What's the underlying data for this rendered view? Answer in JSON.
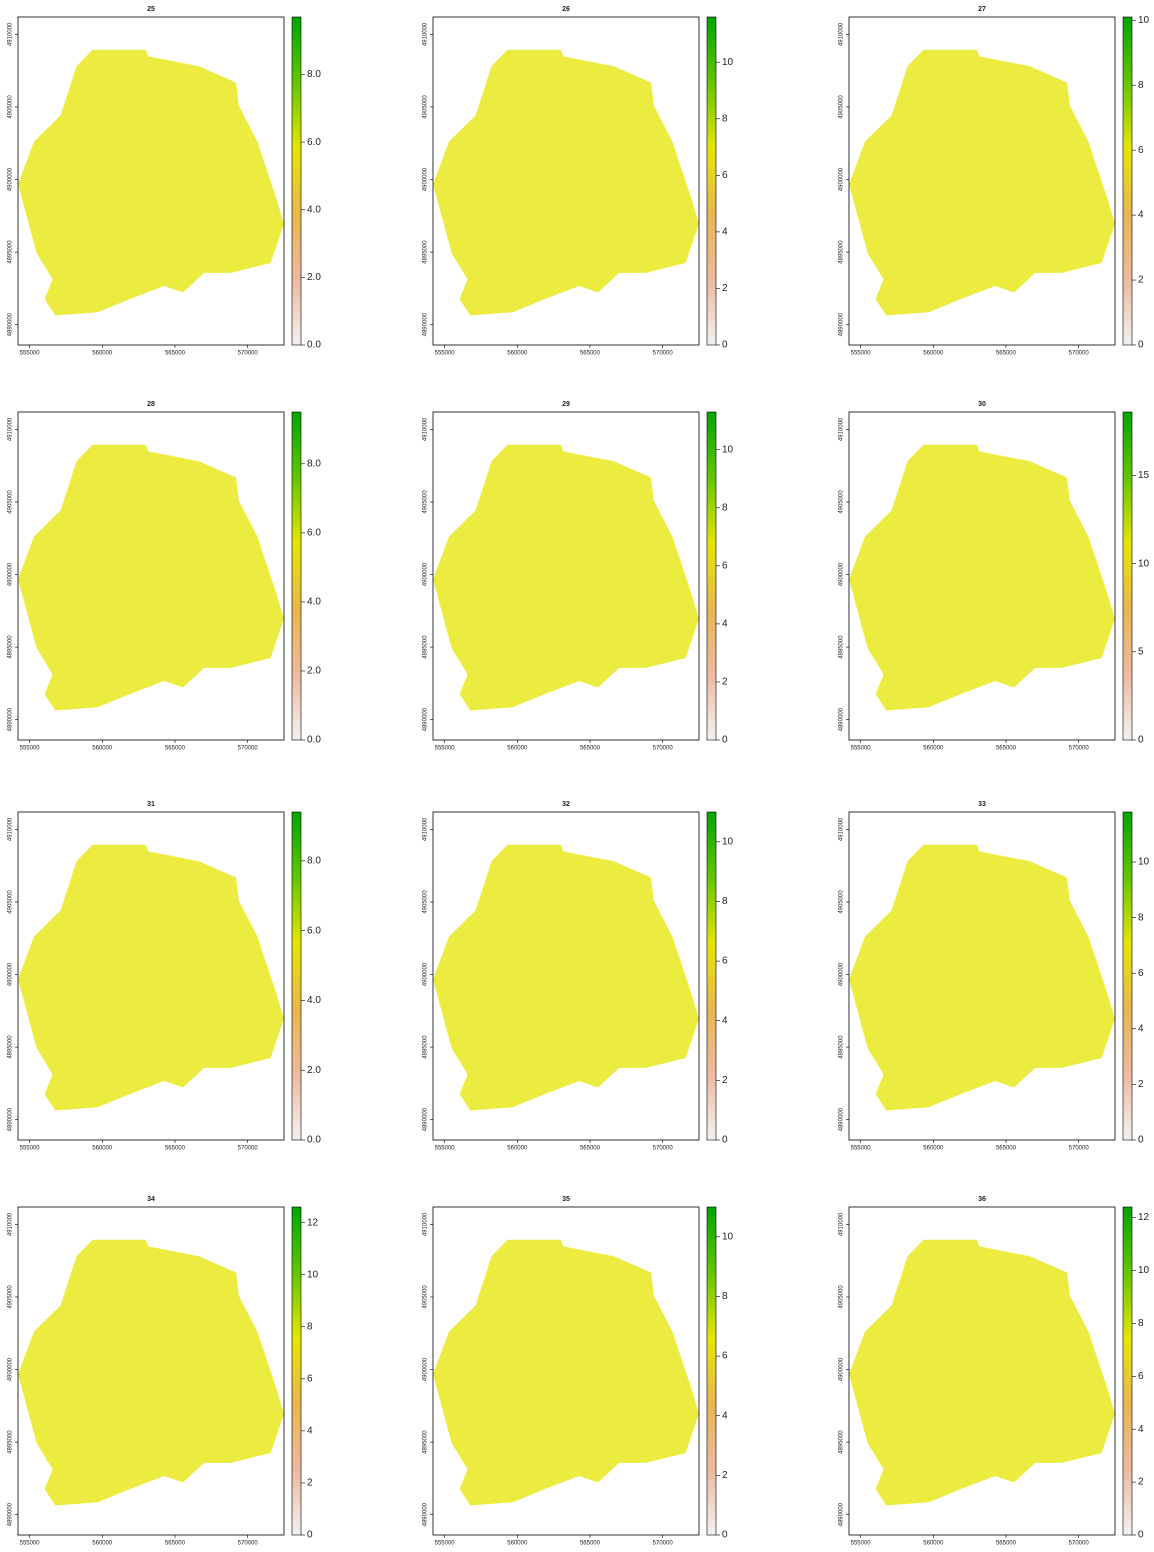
{
  "chart_data": [
    {
      "type": "raster",
      "title": "25",
      "xlim": [
        554200,
        572500
      ],
      "ylim": [
        4888600,
        4911200
      ],
      "xticks": [
        555000,
        560000,
        565000,
        570000
      ],
      "yticks": [
        4890000,
        4895000,
        4900000,
        4905000,
        4910000
      ],
      "clim": [
        0,
        9.7
      ],
      "cticks": [
        {
          "value": 0,
          "label": "0.0"
        },
        {
          "value": 2,
          "label": "2.0"
        },
        {
          "value": 4,
          "label": "4.0"
        },
        {
          "value": 6,
          "label": "6.0"
        },
        {
          "value": 8,
          "label": "8.0"
        }
      ],
      "colormap": [
        "#F2F2F2",
        "#EEB99F",
        "#EAB64E",
        "#E6E600",
        "#63C600",
        "#00A600"
      ]
    },
    {
      "type": "raster",
      "title": "26",
      "xlim": [
        554200,
        572500
      ],
      "ylim": [
        4888600,
        4911200
      ],
      "xticks": [
        555000,
        560000,
        565000,
        570000
      ],
      "yticks": [
        4890000,
        4895000,
        4900000,
        4905000,
        4910000
      ],
      "clim": [
        0,
        11.6
      ],
      "cticks": [
        0,
        2,
        4,
        6,
        8,
        10
      ],
      "colormap": [
        "#F2F2F2",
        "#EEB99F",
        "#EAB64E",
        "#E6E600",
        "#63C600",
        "#00A600"
      ]
    },
    {
      "type": "raster",
      "title": "27",
      "xlim": [
        554200,
        572500
      ],
      "ylim": [
        4888600,
        4911200
      ],
      "xticks": [
        555000,
        560000,
        565000,
        570000
      ],
      "yticks": [
        4890000,
        4895000,
        4900000,
        4905000,
        4910000
      ],
      "clim": [
        0,
        10.1
      ],
      "cticks": [
        0,
        2,
        4,
        6,
        8,
        10
      ],
      "colormap": [
        "#F2F2F2",
        "#EEB99F",
        "#EAB64E",
        "#E6E600",
        "#63C600",
        "#00A600"
      ]
    },
    {
      "type": "raster",
      "title": "28",
      "xlim": [
        554200,
        572500
      ],
      "ylim": [
        4888600,
        4911200
      ],
      "xticks": [
        555000,
        560000,
        565000,
        570000
      ],
      "yticks": [
        4890000,
        4895000,
        4900000,
        4905000,
        4910000
      ],
      "clim": [
        0,
        9.5
      ],
      "cticks": [
        {
          "value": 0,
          "label": "0.0"
        },
        {
          "value": 2,
          "label": "2.0"
        },
        {
          "value": 4,
          "label": "4.0"
        },
        {
          "value": 6,
          "label": "6.0"
        },
        {
          "value": 8,
          "label": "8.0"
        }
      ],
      "colormap": [
        "#F2F2F2",
        "#EEB99F",
        "#EAB64E",
        "#E6E600",
        "#63C600",
        "#00A600"
      ]
    },
    {
      "type": "raster",
      "title": "29",
      "xlim": [
        554200,
        572500
      ],
      "ylim": [
        4888600,
        4911200
      ],
      "xticks": [
        555000,
        560000,
        565000,
        570000
      ],
      "yticks": [
        4890000,
        4895000,
        4900000,
        4905000,
        4910000
      ],
      "clim": [
        0,
        11.3
      ],
      "cticks": [
        0,
        2,
        4,
        6,
        8,
        10
      ],
      "colormap": [
        "#F2F2F2",
        "#EEB99F",
        "#EAB64E",
        "#E6E600",
        "#63C600",
        "#00A600"
      ]
    },
    {
      "type": "raster",
      "title": "30",
      "xlim": [
        554200,
        572500
      ],
      "ylim": [
        4888600,
        4911200
      ],
      "xticks": [
        555000,
        560000,
        565000,
        570000
      ],
      "yticks": [
        4890000,
        4895000,
        4900000,
        4905000,
        4910000
      ],
      "clim": [
        0,
        18.6
      ],
      "cticks": [
        0,
        5,
        10,
        15
      ],
      "colormap": [
        "#F2F2F2",
        "#EEB99F",
        "#EAB64E",
        "#E6E600",
        "#63C600",
        "#00A600"
      ]
    },
    {
      "type": "raster",
      "title": "31",
      "xlim": [
        554200,
        572500
      ],
      "ylim": [
        4888600,
        4911200
      ],
      "xticks": [
        555000,
        560000,
        565000,
        570000
      ],
      "yticks": [
        4890000,
        4895000,
        4900000,
        4905000,
        4910000
      ],
      "clim": [
        0,
        9.4
      ],
      "cticks": [
        {
          "value": 0,
          "label": "0.0"
        },
        {
          "value": 2,
          "label": "2.0"
        },
        {
          "value": 4,
          "label": "4.0"
        },
        {
          "value": 6,
          "label": "6.0"
        },
        {
          "value": 8,
          "label": "8.0"
        }
      ],
      "colormap": [
        "#F2F2F2",
        "#EEB99F",
        "#EAB64E",
        "#E6E600",
        "#63C600",
        "#00A600"
      ]
    },
    {
      "type": "raster",
      "title": "32",
      "xlim": [
        554200,
        572500
      ],
      "ylim": [
        4888600,
        4911200
      ],
      "xticks": [
        555000,
        560000,
        565000,
        570000
      ],
      "yticks": [
        4890000,
        4895000,
        4900000,
        4905000,
        4910000
      ],
      "clim": [
        0,
        11
      ],
      "cticks": [
        0,
        2,
        4,
        6,
        8,
        10
      ],
      "colormap": [
        "#F2F2F2",
        "#EEB99F",
        "#EAB64E",
        "#E6E600",
        "#63C600",
        "#00A600"
      ]
    },
    {
      "type": "raster",
      "title": "33",
      "xlim": [
        554200,
        572500
      ],
      "ylim": [
        4888600,
        4911200
      ],
      "xticks": [
        555000,
        560000,
        565000,
        570000
      ],
      "yticks": [
        4890000,
        4895000,
        4900000,
        4905000,
        4910000
      ],
      "clim": [
        0,
        11.8
      ],
      "cticks": [
        0,
        2,
        4,
        6,
        8,
        10
      ],
      "colormap": [
        "#F2F2F2",
        "#EEB99F",
        "#EAB64E",
        "#E6E600",
        "#63C600",
        "#00A600"
      ]
    },
    {
      "type": "raster",
      "title": "34",
      "xlim": [
        554200,
        572500
      ],
      "ylim": [
        4888600,
        4911200
      ],
      "xticks": [
        555000,
        560000,
        565000,
        570000
      ],
      "yticks": [
        4890000,
        4895000,
        4900000,
        4905000,
        4910000
      ],
      "clim": [
        0,
        12.6
      ],
      "cticks": [
        0,
        2,
        4,
        6,
        8,
        10,
        12
      ],
      "colormap": [
        "#F2F2F2",
        "#EEB99F",
        "#EAB64E",
        "#E6E600",
        "#63C600",
        "#00A600"
      ]
    },
    {
      "type": "raster",
      "title": "35",
      "xlim": [
        554200,
        572500
      ],
      "ylim": [
        4888600,
        4911200
      ],
      "xticks": [
        555000,
        560000,
        565000,
        570000
      ],
      "yticks": [
        4890000,
        4895000,
        4900000,
        4905000,
        4910000
      ],
      "clim": [
        0,
        11
      ],
      "cticks": [
        0,
        2,
        4,
        6,
        8,
        10
      ],
      "colormap": [
        "#F2F2F2",
        "#EEB99F",
        "#EAB64E",
        "#E6E600",
        "#63C600",
        "#00A600"
      ]
    },
    {
      "type": "raster",
      "title": "36",
      "xlim": [
        554200,
        572500
      ],
      "ylim": [
        4888600,
        4911200
      ],
      "xticks": [
        555000,
        560000,
        565000,
        570000
      ],
      "yticks": [
        4890000,
        4895000,
        4900000,
        4905000,
        4910000
      ],
      "clim": [
        0,
        12.4
      ],
      "cticks": [
        0,
        2,
        4,
        6,
        8,
        10,
        12
      ],
      "colormap": [
        "#F2F2F2",
        "#EEB99F",
        "#EAB64E",
        "#E6E600",
        "#63C600",
        "#00A600"
      ]
    }
  ]
}
